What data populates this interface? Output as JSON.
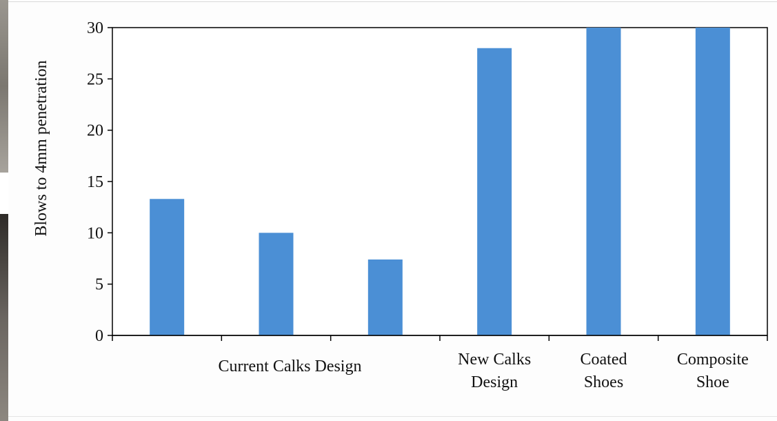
{
  "chart_data": {
    "type": "bar",
    "categories": [
      "",
      "",
      "",
      "New Calks Design",
      "Coated Shoes",
      "Composite Shoe"
    ],
    "group_labels": [
      {
        "text": "Current Calks Design",
        "from": 0,
        "to": 2
      }
    ],
    "category_label_lines": [
      [],
      [],
      [],
      [
        "New Calks",
        "Design"
      ],
      [
        "Coated",
        "Shoes"
      ],
      [
        "Composite",
        "Shoe"
      ]
    ],
    "values": [
      13.3,
      10.0,
      7.4,
      28.0,
      30.0,
      30.0
    ],
    "ylabel": "Blows to 4mm penetration",
    "xlabel": "",
    "title": "",
    "ylim": [
      0,
      30
    ],
    "yticks": [
      0,
      5,
      10,
      15,
      20,
      25,
      30
    ],
    "bar_color": "#4b8fd5",
    "grid": false,
    "legend": "none"
  }
}
